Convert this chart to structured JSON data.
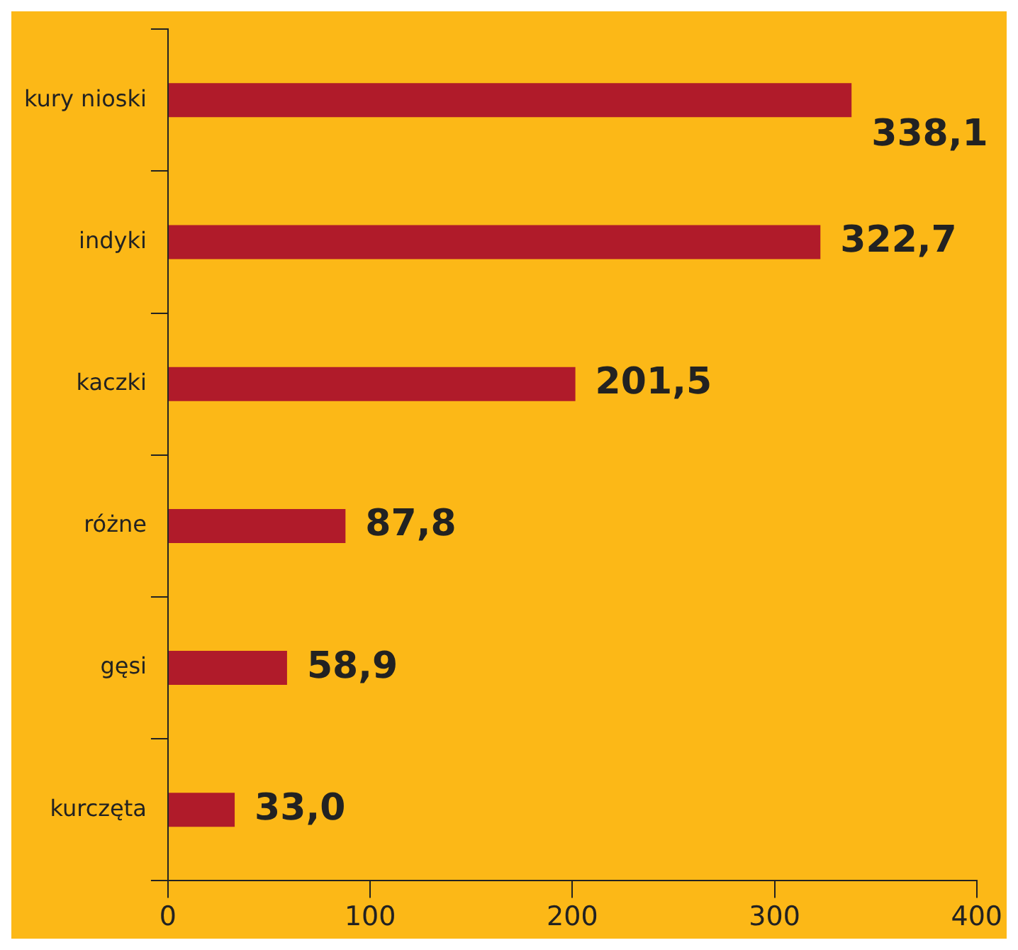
{
  "chart_data": {
    "type": "bar",
    "orientation": "horizontal",
    "categories": [
      "kury nioski",
      "indyki",
      "kaczki",
      "różne",
      "gęsi",
      "kurczęta"
    ],
    "values": [
      338.1,
      322.7,
      201.5,
      87.8,
      58.9,
      33.0
    ],
    "value_labels": [
      "338,1",
      "322,7",
      "201,5",
      "87,8",
      "58,9",
      "33,0"
    ],
    "color": "#b01b2a",
    "xlim": [
      0,
      400
    ],
    "xticks": [
      0,
      100,
      200,
      300,
      400
    ],
    "grid": false,
    "legend": false
  }
}
